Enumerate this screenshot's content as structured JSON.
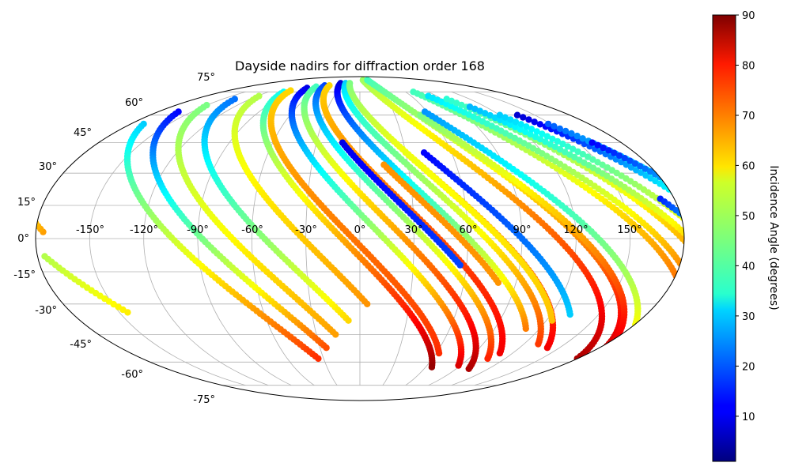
{
  "chart_data": {
    "type": "scatter",
    "projection": "mollweide",
    "title": "Dayside nadirs for diffraction order 168",
    "x_tick_labels": [
      "-150°",
      "-120°",
      "-90°",
      "-60°",
      "-30°",
      "0°",
      "30°",
      "60°",
      "90°",
      "120°",
      "150°"
    ],
    "y_tick_labels": [
      "75°",
      "60°",
      "45°",
      "30°",
      "15°",
      "0°",
      "-15°",
      "-30°",
      "-45°",
      "-60°",
      "-75°"
    ],
    "grid": true,
    "colormap": "jet",
    "colorbar": {
      "label": "Incidence Angle (degrees)",
      "range": [
        1,
        90
      ],
      "ticks": [
        "10",
        "20",
        "30",
        "40",
        "50",
        "60",
        "70",
        "80",
        "90"
      ]
    },
    "series": [
      {
        "lon0": -176,
        "lat0": 3,
        "lat1": 68,
        "dlon": 1.2,
        "i0": 65,
        "i1": 20
      },
      {
        "lon0": -176,
        "lat0": -8,
        "lat1": -34,
        "dlon": 1.2,
        "i0": 50,
        "i1": 58
      },
      {
        "lon0": -170,
        "lat0": 55,
        "lat1": -58,
        "dlon": 1.2,
        "i0": 30,
        "i1": 75
      },
      {
        "lon0": -162,
        "lat0": 62,
        "lat1": -52,
        "dlon": 1.2,
        "i0": 12,
        "i1": 72
      },
      {
        "lon0": -150,
        "lat0": 66,
        "lat1": -45,
        "dlon": 1.2,
        "i0": 45,
        "i1": 65
      },
      {
        "lon0": -137,
        "lat0": 70,
        "lat1": -38,
        "dlon": 1.2,
        "i0": 22,
        "i1": 60
      },
      {
        "lon0": -118,
        "lat0": 72,
        "lat1": -30,
        "dlon": 1.2,
        "i0": 50,
        "i1": 66
      },
      {
        "lon0": -100,
        "lat0": 75,
        "lat1": -63,
        "dlon": 1.2,
        "i0": 35,
        "i1": 88
      },
      {
        "lon0": -95,
        "lat0": 76,
        "lat1": -55,
        "dlon": 1.2,
        "i0": 60,
        "i1": 75
      },
      {
        "lon0": -80,
        "lat0": 78,
        "lat1": -62,
        "dlon": 1.2,
        "i0": 10,
        "i1": 82
      },
      {
        "lon0": -70,
        "lat0": 79,
        "lat1": -64,
        "dlon": 1.2,
        "i0": 40,
        "i1": 86
      },
      {
        "lon0": -60,
        "lat0": 80,
        "lat1": -58,
        "dlon": 1.2,
        "i0": 18,
        "i1": 76
      },
      {
        "lon0": -52,
        "lat0": 80,
        "lat1": -55,
        "dlon": 1.2,
        "i0": 60,
        "i1": 80
      },
      {
        "lon0": -38,
        "lat0": 82,
        "lat1": -42,
        "dlon": 1.2,
        "i0": 8,
        "i1": 68
      },
      {
        "lon0": -28,
        "lat0": 82,
        "lat1": -50,
        "dlon": 1.2,
        "i0": 30,
        "i1": 74
      },
      {
        "lon0": -20,
        "lat0": 82,
        "lat1": -52,
        "dlon": 1.2,
        "i0": 45,
        "i1": 80
      },
      {
        "lon0": -12,
        "lat0": 45,
        "lat1": -12,
        "dlon": 1.2,
        "i0": 10,
        "i1": 18
      },
      {
        "lon0": 15,
        "lat0": 34,
        "lat1": -20,
        "dlon": 1.2,
        "i0": 66,
        "i1": 66
      },
      {
        "lon0": 8,
        "lat0": 85,
        "lat1": -58,
        "dlon": 1.2,
        "i0": 48,
        "i1": 86
      },
      {
        "lon0": 20,
        "lat0": 85,
        "lat1": -55,
        "dlon": 1.2,
        "i0": 40,
        "i1": 84
      },
      {
        "lon0": 30,
        "lat0": 40,
        "lat1": -38,
        "dlon": 1.2,
        "i0": 55,
        "i1": 62
      },
      {
        "lon0": 42,
        "lat0": 40,
        "lat1": -35,
        "dlon": 1.2,
        "i0": 12,
        "i1": 30
      },
      {
        "lon0": 52,
        "lat0": 60,
        "lat1": -52,
        "dlon": 1.2,
        "i0": 45,
        "i1": 82
      },
      {
        "lon0": 58,
        "lat0": 62,
        "lat1": -40,
        "dlon": 1.2,
        "i0": 25,
        "i1": 56
      },
      {
        "lon0": 70,
        "lat0": 75,
        "lat1": -48,
        "dlon": 1.2,
        "i0": 40,
        "i1": 78
      },
      {
        "lon0": 80,
        "lat0": 72,
        "lat1": -50,
        "dlon": 1.2,
        "i0": 32,
        "i1": 82
      },
      {
        "lon0": 95,
        "lat0": 70,
        "lat1": -48,
        "dlon": 1.2,
        "i0": 38,
        "i1": 80
      },
      {
        "lon0": 105,
        "lat0": 65,
        "lat1": -52,
        "dlon": 1.2,
        "i0": 28,
        "i1": 86
      },
      {
        "lon0": 120,
        "lat0": 60,
        "lat1": -48,
        "dlon": 1.2,
        "i0": 30,
        "i1": 84
      },
      {
        "lon0": 135,
        "lat0": 60,
        "lat1": -45,
        "dlon": 1.2,
        "i0": 8,
        "i1": 80
      },
      {
        "lon0": 148,
        "lat0": 55,
        "lat1": -40,
        "dlon": 1.2,
        "i0": 20,
        "i1": 78
      },
      {
        "lon0": 160,
        "lat0": 45,
        "lat1": -30,
        "dlon": 1.2,
        "i0": 12,
        "i1": 70
      },
      {
        "lon0": 172,
        "lat0": 18,
        "lat1": -25,
        "dlon": 1.2,
        "i0": 15,
        "i1": 66
      }
    ]
  }
}
